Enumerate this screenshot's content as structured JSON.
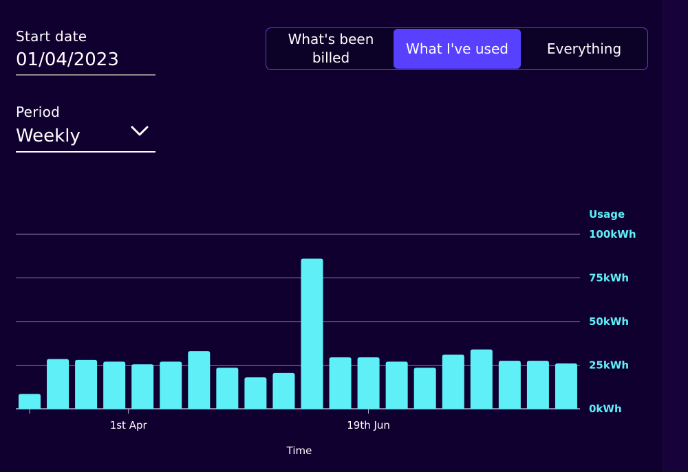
{
  "start_date": {
    "label": "Start date",
    "value": "01/04/2023"
  },
  "period": {
    "label": "Period",
    "value": "Weekly"
  },
  "view_toggle": {
    "options": [
      "What's been billed",
      "What I've used",
      "Everything"
    ],
    "selected": "What I've used"
  },
  "colors": {
    "background": "#100030",
    "bar": "#5ff0f7",
    "axis_label": "#5ff0f7",
    "selected_segment": "#5840ff",
    "gridline": "#8f84b6"
  },
  "icons": {
    "period_dropdown": "chevron-down-icon"
  },
  "chart_data": {
    "type": "bar",
    "ylabel": "Usage",
    "xlabel": "Time",
    "ylim": [
      0,
      100
    ],
    "y_ticks": [
      0,
      25,
      50,
      75,
      100
    ],
    "y_tick_labels": [
      "0kWh",
      "25kWh",
      "50kWh",
      "75kWh",
      "100kWh"
    ],
    "x_tick_labels": [
      {
        "label": "1st Apr",
        "bar_index": 3.5
      },
      {
        "label": "19th Jun",
        "bar_index": 12
      }
    ],
    "values": [
      8.5,
      28.5,
      28,
      27,
      25.5,
      27,
      33,
      23.5,
      18,
      20.5,
      86,
      29.5,
      29.5,
      27,
      23.5,
      31,
      34,
      27.5,
      27.5,
      26
    ],
    "grid": true,
    "axis_side": "right"
  }
}
